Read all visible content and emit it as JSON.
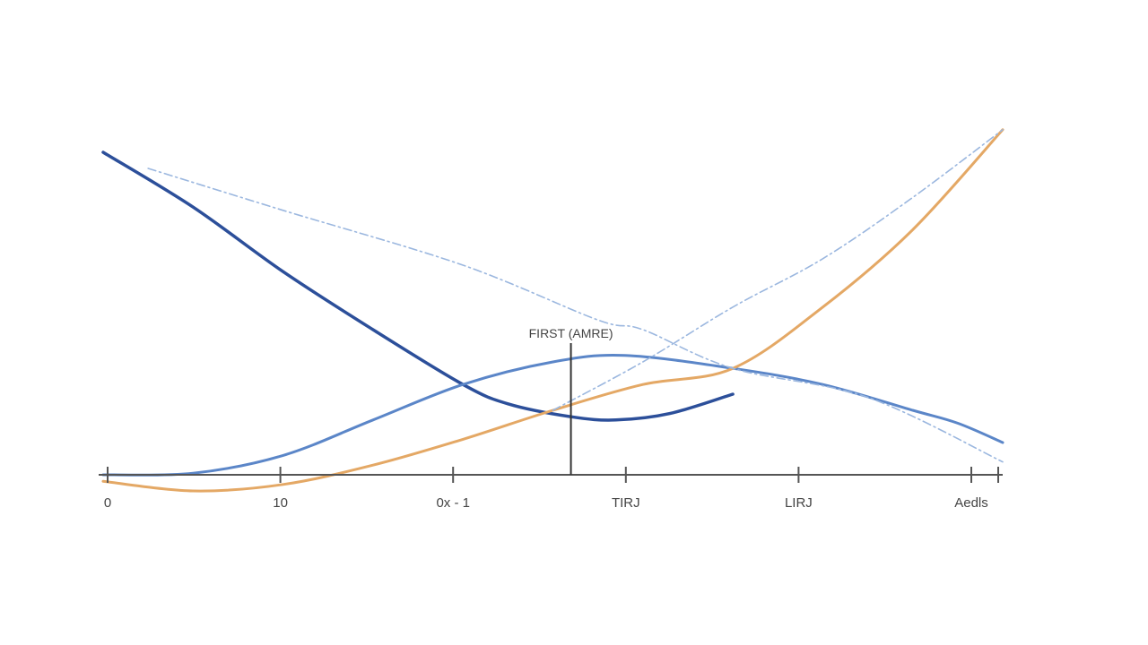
{
  "chart_data": {
    "type": "line",
    "title": "",
    "xlabel": "",
    "ylabel": "",
    "x_tick_labels": [
      "0",
      "10",
      "0x - 1",
      "TIRJ",
      "LIRJ",
      "Aedls"
    ],
    "xlim": [
      0,
      100
    ],
    "ylim": [
      0,
      100
    ],
    "grid": false,
    "legend": "none",
    "annotations": [
      {
        "label": "FIRST (AMRE)",
        "x": 52
      }
    ],
    "series": [
      {
        "style": "solid",
        "color": "#2c4f9a",
        "x": [
          0,
          10,
          20,
          30,
          40,
          45,
          52,
          57,
          63,
          70
        ],
        "y": [
          100,
          83,
          63,
          45,
          28,
          22,
          18,
          17,
          19,
          25
        ]
      },
      {
        "style": "solid",
        "color": "#5b86c8",
        "x": [
          0,
          10,
          20,
          30,
          40,
          50,
          58,
          70,
          80,
          90,
          95,
          100
        ],
        "y": [
          0,
          0.5,
          6,
          17,
          28,
          35,
          37,
          33,
          28,
          20,
          16,
          10
        ]
      },
      {
        "style": "solid",
        "color": "#e4a865",
        "x": [
          0,
          10,
          20,
          30,
          40,
          50,
          60,
          70,
          80,
          90,
          100
        ],
        "y": [
          -2,
          -5,
          -3,
          3,
          11,
          20,
          28,
          33,
          52,
          76,
          107
        ]
      },
      {
        "style": "dashed",
        "color": "#9bb7df",
        "x": [
          5,
          20,
          40,
          55,
          60,
          70,
          85,
          100
        ],
        "y": [
          95,
          82,
          65,
          48,
          45,
          33,
          24,
          4
        ]
      },
      {
        "style": "dashed",
        "color": "#9bb7df",
        "x": [
          50,
          60,
          70,
          80,
          90,
          100
        ],
        "y": [
          20,
          35,
          52,
          67,
          86,
          107
        ]
      }
    ]
  }
}
